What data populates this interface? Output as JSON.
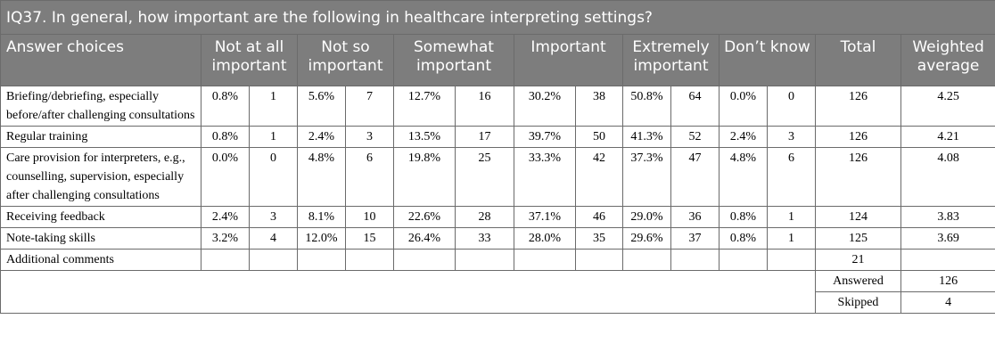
{
  "title": "IQ37. In general, how important are the following in healthcare interpreting settings?",
  "columns": [
    "Answer choices",
    "Not at all important",
    "Not so important",
    "Somewhat important",
    "Important",
    "Extremely important",
    "Don’t know",
    "Total",
    "Weighted average"
  ],
  "rows": [
    {
      "label": "Briefing/debriefing, especially before/after challenging consultations",
      "cells": [
        "0.8%",
        1,
        "5.6%",
        7,
        "12.7%",
        16,
        "30.2%",
        38,
        "50.8%",
        64,
        "0.0%",
        0
      ],
      "total": 126,
      "weighted": 4.25
    },
    {
      "label": "Regular training",
      "cells": [
        "0.8%",
        1,
        "2.4%",
        3,
        "13.5%",
        17,
        "39.7%",
        50,
        "41.3%",
        52,
        "2.4%",
        3
      ],
      "total": 126,
      "weighted": 4.21
    },
    {
      "label": "Care provision for interpreters, e.g., counselling, supervision, especially after challenging consultations",
      "cells": [
        "0.0%",
        0,
        "4.8%",
        6,
        "19.8%",
        25,
        "33.3%",
        42,
        "37.3%",
        47,
        "4.8%",
        6
      ],
      "total": 126,
      "weighted": 4.08
    },
    {
      "label": "Receiving feedback",
      "cells": [
        "2.4%",
        3,
        "8.1%",
        10,
        "22.6%",
        28,
        "37.1%",
        46,
        "29.0%",
        36,
        "0.8%",
        1
      ],
      "total": 124,
      "weighted": 3.83
    },
    {
      "label": "Note-taking skills",
      "cells": [
        "3.2%",
        4,
        "12.0%",
        15,
        "26.4%",
        33,
        "28.0%",
        35,
        "29.6%",
        37,
        "0.8%",
        1
      ],
      "total": 125,
      "weighted": 3.69
    }
  ],
  "additional": {
    "label": "Additional comments",
    "total": 21
  },
  "summary": [
    {
      "label": "Answered",
      "value": 126
    },
    {
      "label": "Skipped",
      "value": 4
    }
  ]
}
